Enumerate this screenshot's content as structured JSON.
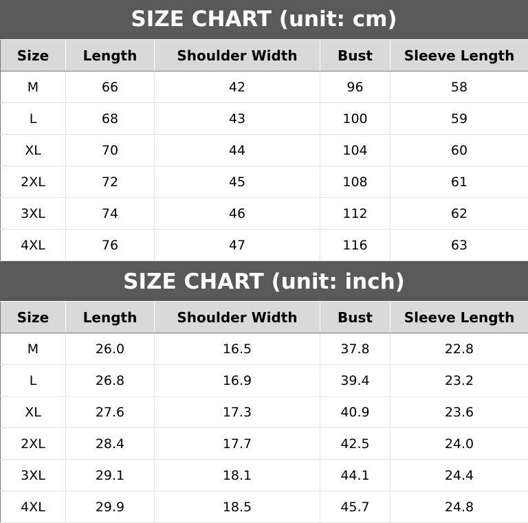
{
  "tables": [
    {
      "title": "SIZE CHART (unit: cm)",
      "headers": [
        "Size",
        "Length",
        "Shoulder Width",
        "Bust",
        "Sleeve Length"
      ],
      "rows": [
        [
          "M",
          "66",
          "42",
          "96",
          "58"
        ],
        [
          "L",
          "68",
          "43",
          "100",
          "59"
        ],
        [
          "XL",
          "70",
          "44",
          "104",
          "60"
        ],
        [
          "2XL",
          "72",
          "45",
          "108",
          "61"
        ],
        [
          "3XL",
          "74",
          "46",
          "112",
          "62"
        ],
        [
          "4XL",
          "76",
          "47",
          "116",
          "63"
        ]
      ]
    },
    {
      "title": "SIZE CHART (unit: inch)",
      "headers": [
        "Size",
        "Length",
        "Shoulder Width",
        "Bust",
        "Sleeve Length"
      ],
      "rows": [
        [
          "M",
          "26.0",
          "16.5",
          "37.8",
          "22.8"
        ],
        [
          "L",
          "26.8",
          "16.9",
          "39.4",
          "23.2"
        ],
        [
          "XL",
          "27.6",
          "17.3",
          "40.9",
          "23.6"
        ],
        [
          "2XL",
          "28.4",
          "17.7",
          "42.5",
          "24.0"
        ],
        [
          "3XL",
          "29.1",
          "18.1",
          "44.1",
          "24.4"
        ],
        [
          "4XL",
          "29.9",
          "18.5",
          "45.7",
          "24.8"
        ]
      ]
    }
  ],
  "colors": {
    "title_bg": "#595959",
    "header_bg": "#d9d9d9"
  }
}
